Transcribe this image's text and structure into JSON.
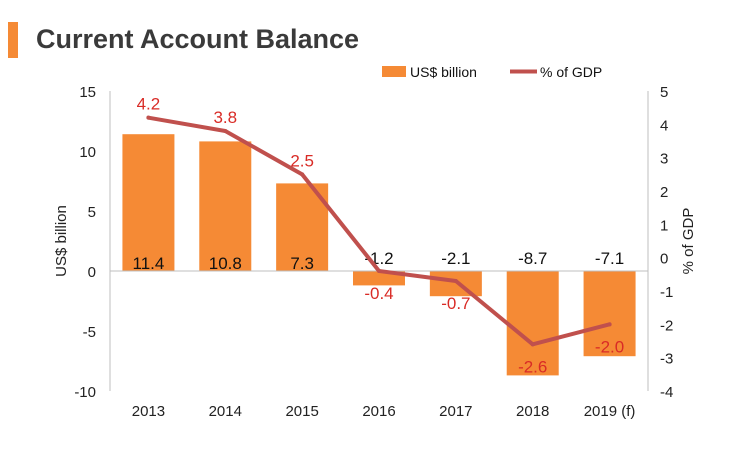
{
  "title": "Current Account Balance",
  "chart_data": {
    "type": "bar",
    "categories": [
      "2013",
      "2014",
      "2015",
      "2016",
      "2017",
      "2018",
      "2019 (f)"
    ],
    "series": [
      {
        "name": "US$ billion",
        "type": "bar",
        "axis": "left",
        "color": "#f58a35",
        "values": [
          11.4,
          10.8,
          7.3,
          -1.2,
          -2.1,
          -8.7,
          -7.1
        ],
        "labels": [
          "11.4",
          "10.8",
          "7.3",
          "-1.2",
          "-2.1",
          "-8.7",
          "-7.1"
        ]
      },
      {
        "name": "% of GDP",
        "type": "line",
        "axis": "right",
        "color": "#c0504d",
        "values": [
          4.2,
          3.8,
          2.5,
          -0.4,
          -0.7,
          -2.6,
          -2.0
        ],
        "labels": [
          "4.2",
          "3.8",
          "2.5",
          "-0.4",
          "-0.7",
          "-2.6",
          "-2.0"
        ]
      }
    ],
    "ylabel": "US$ billion",
    "y2label": "% of  GDP",
    "ylim": [
      -10,
      15
    ],
    "y2lim": [
      -4,
      5
    ],
    "yticks": [
      "15",
      "10",
      "5",
      "0",
      "-5",
      "-10"
    ],
    "y2ticks": [
      "5",
      "4",
      "3",
      "2",
      "1",
      "0",
      "-1",
      "-2",
      "-3",
      "-4"
    ],
    "legend_position": "top-right",
    "grid": false
  }
}
